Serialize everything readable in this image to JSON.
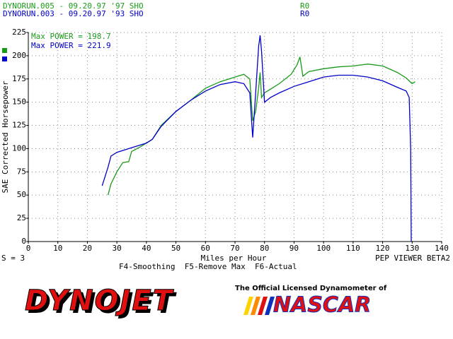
{
  "screen": {
    "header": [
      {
        "text": "DYNORUN.005 - 09.20.97 '97 SHO",
        "tag": "R0"
      },
      {
        "text": "DYNORUN.003 - 09.20.97 '93 SHO",
        "tag": "R0"
      }
    ],
    "smoothing": "S = 3",
    "version": "PEP VIEWER BETA2",
    "keys": "F4-Smoothing  F5-Remove Max  F6-Actual",
    "brand": "DYNOJET",
    "tagline": "The Official Licensed Dynamometer of",
    "partner": "NASCAR"
  },
  "chart_data": {
    "type": "line",
    "xlabel": "Miles per Hour",
    "ylabel": "SAE Corrected Horsepower",
    "xlim": [
      0,
      140
    ],
    "ylim": [
      0,
      225
    ],
    "xticks": [
      0,
      10,
      20,
      30,
      40,
      50,
      60,
      70,
      80,
      90,
      100,
      110,
      120,
      130,
      140
    ],
    "yticks": [
      0,
      25,
      50,
      75,
      100,
      125,
      150,
      175,
      200,
      225
    ],
    "grid": true,
    "series": [
      {
        "name": "Max POWER = 198.7",
        "color": "#1a9a1a",
        "x": [
          27,
          28,
          30,
          32,
          34,
          35,
          38,
          42,
          45,
          50,
          55,
          60,
          65,
          70,
          73,
          75,
          76,
          77,
          78,
          78.5,
          79,
          80,
          85,
          89,
          91,
          92,
          93,
          95,
          100,
          105,
          110,
          115,
          120,
          125,
          128,
          130,
          131
        ],
        "values": [
          50,
          62,
          75,
          85,
          86,
          97,
          102,
          110,
          125,
          140,
          152,
          165,
          172,
          177,
          180,
          175,
          130,
          140,
          165,
          182,
          155,
          160,
          170,
          180,
          190,
          198.7,
          178,
          183,
          186,
          188,
          189,
          191,
          189,
          182,
          176,
          170,
          172
        ]
      },
      {
        "name": "Max POWER = 221.9",
        "color": "#0000c8",
        "x": [
          25,
          27,
          28,
          30,
          35,
          40,
          42,
          45,
          50,
          55,
          60,
          65,
          70,
          73,
          75,
          76,
          77,
          78,
          78.5,
          79,
          80,
          82,
          85,
          90,
          95,
          100,
          105,
          110,
          115,
          120,
          125,
          128,
          129,
          129.5,
          129.7
        ],
        "values": [
          60,
          80,
          92,
          96,
          101,
          106,
          110,
          124,
          140,
          152,
          162,
          169,
          172,
          170,
          160,
          112,
          160,
          210,
          221.9,
          205,
          150,
          155,
          160,
          167,
          172,
          177,
          179,
          179,
          177,
          173,
          166,
          162,
          155,
          100,
          0
        ]
      }
    ]
  }
}
